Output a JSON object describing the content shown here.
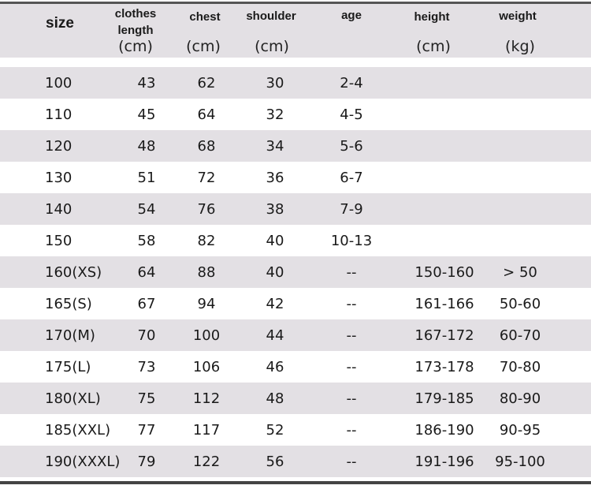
{
  "header": {
    "size": "size",
    "clothes_length": [
      "clothes",
      "length"
    ],
    "chest": "chest",
    "shoulder": "shoulder",
    "age": "age",
    "height": "height",
    "weight": "weight",
    "unit_cm": "(cm)",
    "unit_kg": "(kg)"
  },
  "rows": [
    [
      "100",
      "43",
      "62",
      "30",
      "2-4",
      "",
      ""
    ],
    [
      "110",
      "45",
      "64",
      "32",
      "4-5",
      "",
      ""
    ],
    [
      "120",
      "48",
      "68",
      "34",
      "5-6",
      "",
      ""
    ],
    [
      "130",
      "51",
      "72",
      "36",
      "6-7",
      "",
      ""
    ],
    [
      "140",
      "54",
      "76",
      "38",
      "7-9",
      "",
      ""
    ],
    [
      "150",
      "58",
      "82",
      "40",
      "10-13",
      "",
      ""
    ],
    [
      "160(XS)",
      "64",
      "88",
      "40",
      "--",
      "150-160",
      "> 50"
    ],
    [
      "165(S)",
      "67",
      "94",
      "42",
      "--",
      "161-166",
      "50-60"
    ],
    [
      "170(M)",
      "70",
      "100",
      "44",
      "--",
      "167-172",
      "60-70"
    ],
    [
      "175(L)",
      "73",
      "106",
      "46",
      "--",
      "173-178",
      "70-80"
    ],
    [
      "180(XL)",
      "75",
      "112",
      "48",
      "--",
      "179-185",
      "80-90"
    ],
    [
      "185(XXL)",
      "77",
      "117",
      "52",
      "--",
      "186-190",
      "90-95"
    ],
    [
      "190(XXXL)",
      "79",
      "122",
      "56",
      "--",
      "191-196",
      "95-100"
    ]
  ],
  "colors": {
    "band": "#e3e0e4",
    "rule": "#444444"
  }
}
